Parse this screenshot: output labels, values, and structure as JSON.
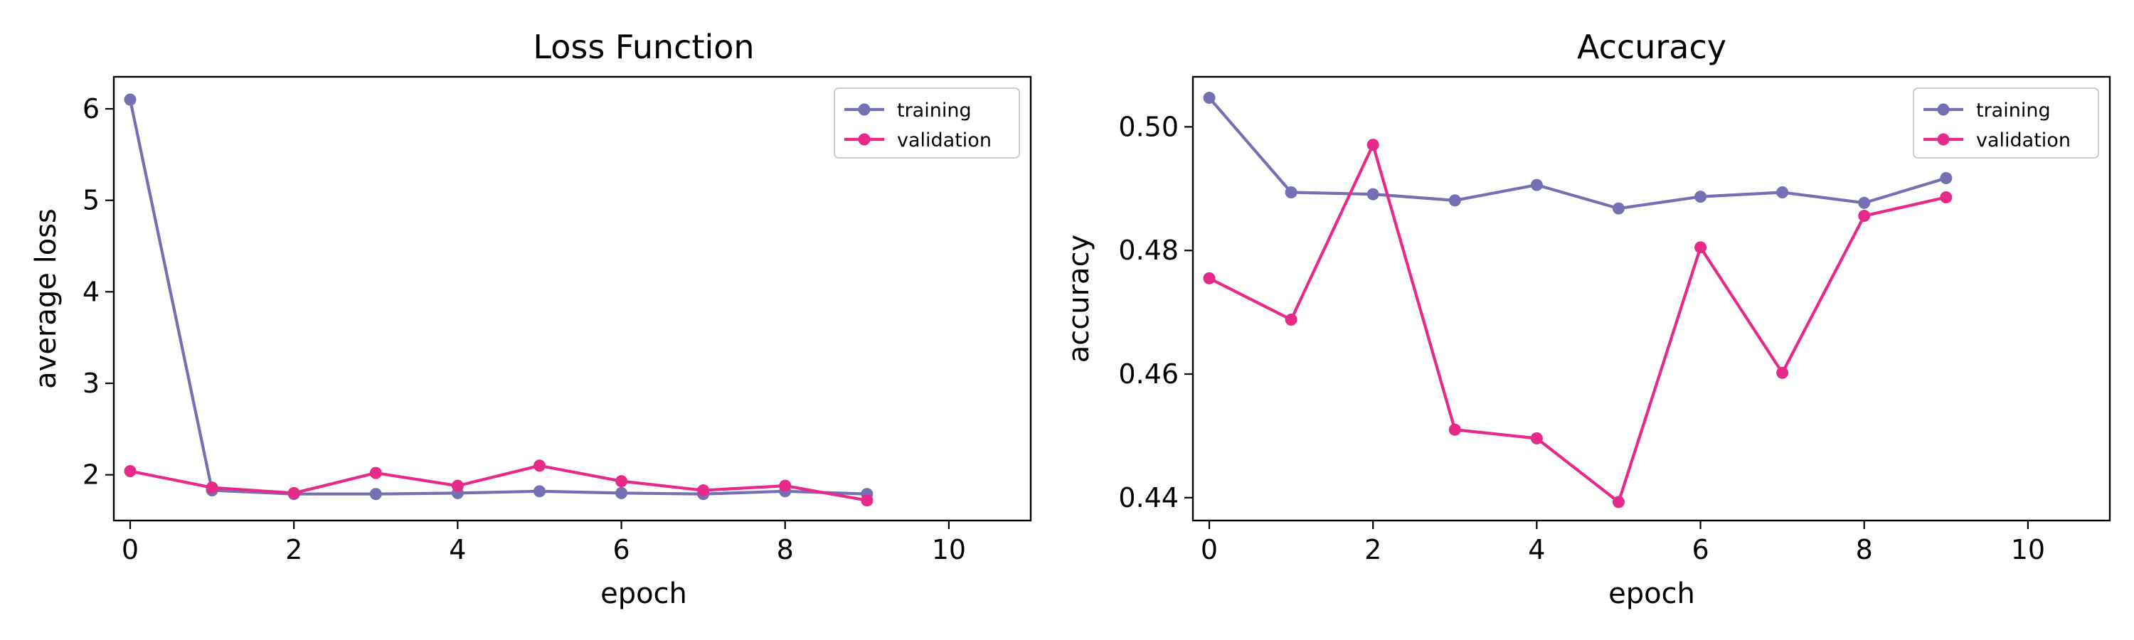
{
  "colors": {
    "training": "#7570b3",
    "validation": "#e7298a",
    "axes": "#000000",
    "background": "#ffffff"
  },
  "chart_data": [
    {
      "type": "line",
      "title": "Loss Function",
      "xlabel": "epoch",
      "ylabel": "average loss",
      "xlim": [
        -0.2,
        11
      ],
      "ylim": [
        1.5,
        6.35
      ],
      "xticks": [
        0,
        2,
        4,
        6,
        8,
        10
      ],
      "yticks": [
        2,
        3,
        4,
        5,
        6
      ],
      "xtick_labels": [
        "0",
        "2",
        "4",
        "6",
        "8",
        "10"
      ],
      "ytick_labels": [
        "2",
        "3",
        "4",
        "5",
        "6"
      ],
      "grid": false,
      "legend": "top-right",
      "x": [
        0,
        1,
        2,
        3,
        4,
        5,
        6,
        7,
        8,
        9
      ],
      "series": [
        {
          "name": "training",
          "color": "#7570b3",
          "values": [
            6.1,
            1.83,
            1.79,
            1.79,
            1.8,
            1.82,
            1.8,
            1.79,
            1.82,
            1.79
          ]
        },
        {
          "name": "validation",
          "color": "#e7298a",
          "values": [
            2.04,
            1.86,
            1.8,
            2.02,
            1.88,
            2.1,
            1.93,
            1.83,
            1.88,
            1.72
          ]
        }
      ]
    },
    {
      "type": "line",
      "title": "Accuracy",
      "xlabel": "epoch",
      "ylabel": "accuracy",
      "xlim": [
        -0.2,
        11
      ],
      "ylim": [
        0.4363,
        0.5081
      ],
      "xticks": [
        0,
        2,
        4,
        6,
        8,
        10
      ],
      "yticks": [
        0.44,
        0.46,
        0.48,
        0.5
      ],
      "xtick_labels": [
        "0",
        "2",
        "4",
        "6",
        "8",
        "10"
      ],
      "ytick_labels": [
        "0.44",
        "0.46",
        "0.48",
        "0.50"
      ],
      "grid": false,
      "legend": "top-right",
      "x": [
        0,
        1,
        2,
        3,
        4,
        5,
        6,
        7,
        8,
        9
      ],
      "series": [
        {
          "name": "training",
          "color": "#7570b3",
          "values": [
            0.5047,
            0.4894,
            0.4891,
            0.4881,
            0.4906,
            0.4868,
            0.4887,
            0.4894,
            0.4877,
            0.4917
          ]
        },
        {
          "name": "validation",
          "color": "#e7298a",
          "values": [
            0.4755,
            0.4688,
            0.4971,
            0.451,
            0.4496,
            0.4393,
            0.4805,
            0.4602,
            0.4856,
            0.4886
          ]
        }
      ]
    }
  ]
}
